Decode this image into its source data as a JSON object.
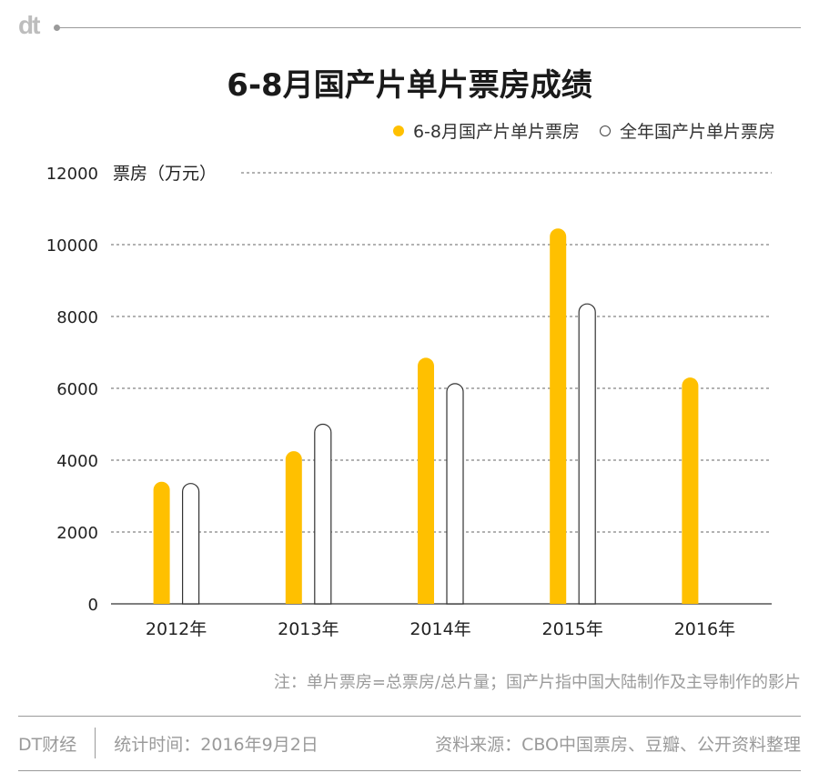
{
  "brand": {
    "logo_text": "dt"
  },
  "chart_data": {
    "type": "bar",
    "title": "6-8月国产片单片票房成绩",
    "ylabel": "票房（万元）",
    "categories": [
      "2012年",
      "2013年",
      "2014年",
      "2015年",
      "2016年"
    ],
    "series": [
      {
        "name": "6-8月国产片单片票房",
        "values": [
          3400,
          4250,
          6850,
          10450,
          6300
        ],
        "color": "#ffc000",
        "style": "filled"
      },
      {
        "name": "全年国产片单片票房",
        "values": [
          3350,
          5000,
          6130,
          8350,
          null
        ],
        "color": "#ffffff",
        "style": "outline"
      }
    ],
    "ylim": [
      0,
      12000
    ],
    "yticks": [
      0,
      2000,
      4000,
      6000,
      8000,
      10000,
      12000
    ],
    "grid": "dashed horizontal",
    "legend_position": "top-right"
  },
  "footnote": "注：单片票房=总票房/总片量；国产片指中国大陆制作及主导制作的影片",
  "footer": {
    "brand": "DT财经",
    "stat_time": "统计时间：2016年9月2日",
    "source": "资料来源：CBO中国票房、豆瓣、公开资料整理"
  }
}
